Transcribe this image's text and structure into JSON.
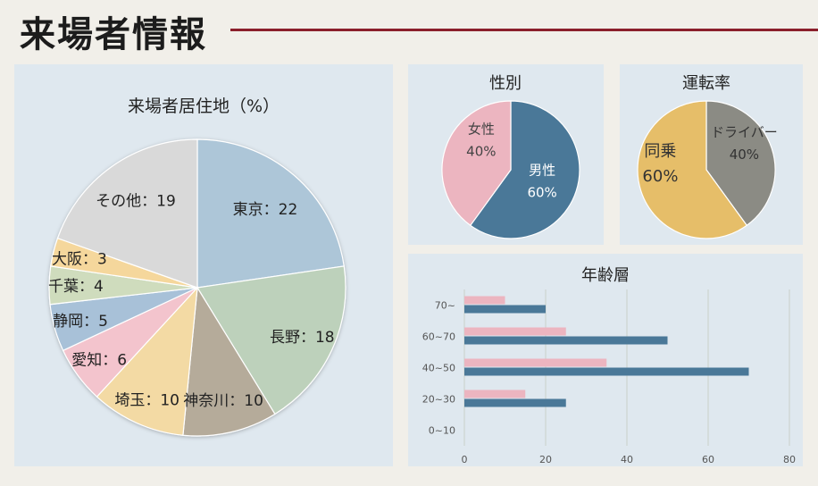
{
  "page": {
    "title": "来場者情報"
  },
  "chart_data": [
    {
      "type": "pie",
      "title": "来場者居住地（%）",
      "separator": "：",
      "categories": [
        "東京",
        "長野",
        "神奈川",
        "埼玉",
        "愛知",
        "静岡",
        "千葉",
        "大阪",
        "その他"
      ],
      "values": [
        22,
        18,
        10,
        10,
        6,
        5,
        4,
        3,
        19
      ],
      "colors": [
        "#adc6d8",
        "#bdd1bb",
        "#b5ab9a",
        "#f3daa4",
        "#f3c4cd",
        "#a8c1d8",
        "#cfdcbd",
        "#f5d79c",
        "#d9d9d9"
      ]
    },
    {
      "type": "pie",
      "title": "性別",
      "categories": [
        "男性",
        "女性"
      ],
      "values": [
        60,
        40
      ],
      "value_labels": [
        "60%",
        "40%"
      ],
      "colors": [
        "#4a7898",
        "#ecb5c0"
      ],
      "label_colors": [
        "#ffffff",
        "#444444"
      ]
    },
    {
      "type": "pie",
      "title": "運転率",
      "categories": [
        "ドライバー",
        "同乗"
      ],
      "values": [
        40,
        60
      ],
      "value_labels": [
        "40%",
        "60%"
      ],
      "colors": [
        "#8b8b84",
        "#e6be69"
      ],
      "label_colors": [
        "#333333",
        "#333333"
      ]
    },
    {
      "type": "bar",
      "orientation": "horizontal",
      "title": "年齢層",
      "categories": [
        "70~",
        "60~70",
        "40~50",
        "20~30",
        "0~10"
      ],
      "series": [
        {
          "values": [
            10,
            25,
            35,
            15,
            0
          ],
          "color": "#ecb5c0"
        },
        {
          "values": [
            20,
            50,
            70,
            25,
            0
          ],
          "color": "#4a7898"
        }
      ],
      "xlim": [
        0,
        80
      ],
      "xticks": [
        0,
        20,
        40,
        60,
        80
      ],
      "grid": true
    }
  ]
}
